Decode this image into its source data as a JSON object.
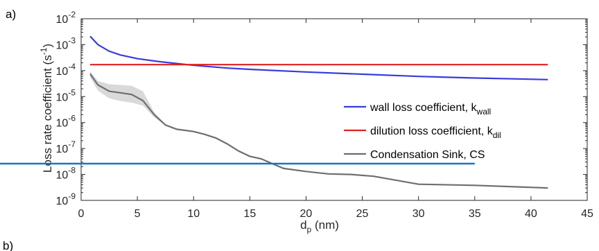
{
  "panel_label": "a)",
  "next_panel_label": "b)",
  "chart_data": {
    "type": "line",
    "title": "",
    "xlabel_main": "d",
    "xlabel_sub": "p",
    "xlabel_unit": " (nm)",
    "ylabel_main": "Loss rate coefficient (s",
    "ylabel_sup": "-1",
    "ylabel_close": ")",
    "xlim": [
      0,
      45
    ],
    "ylim": [
      1e-09,
      0.01
    ],
    "yscale": "log",
    "grid": false,
    "legend_position": "right",
    "x_ticks": [
      "0",
      "5",
      "10",
      "15",
      "20",
      "25",
      "30",
      "35",
      "40",
      "45"
    ],
    "y_ticks": [
      {
        "base": "10",
        "exp": "-9"
      },
      {
        "base": "10",
        "exp": "-8"
      },
      {
        "base": "10",
        "exp": "-7"
      },
      {
        "base": "10",
        "exp": "-6"
      },
      {
        "base": "10",
        "exp": "-5"
      },
      {
        "base": "10",
        "exp": "-4"
      },
      {
        "base": "10",
        "exp": "-3"
      },
      {
        "base": "10",
        "exp": "-2"
      }
    ],
    "series": [
      {
        "name_main": "wall loss coefficient, k",
        "name_sub": "wall",
        "color": "#3a3adb",
        "x": [
          0.8,
          1.5,
          2.5,
          3.5,
          5,
          7,
          10,
          13,
          15,
          20,
          25,
          30,
          35,
          41.5
        ],
        "y": [
          0.0021,
          0.001,
          0.00056,
          0.0004,
          0.00029,
          0.00022,
          0.00016,
          0.000125,
          0.000112,
          8.9e-05,
          7.3e-05,
          6e-05,
          5.2e-05,
          4.5e-05
        ]
      },
      {
        "name_main": "dilution loss coefficient, k",
        "name_sub": "dil",
        "color": "#e02020",
        "x": [
          0.8,
          41.5
        ],
        "y": [
          0.00017,
          0.00017
        ]
      },
      {
        "name_main": "Condensation Sink, CS",
        "name_sub": "",
        "color": "#6e6e6e",
        "band_color": "#d9d9d9",
        "x": [
          0.8,
          1.5,
          2.5,
          3.5,
          4.5,
          5.5,
          6.5,
          7.5,
          8.5,
          10,
          11,
          12,
          13,
          14,
          15,
          16,
          17,
          18,
          20,
          22,
          24,
          26,
          28,
          30,
          35,
          41.5
        ],
        "y": [
          7.5e-05,
          2.8e-05,
          1.6e-05,
          1.4e-05,
          1.2e-05,
          7e-06,
          2e-06,
          8e-07,
          5.5e-07,
          4.5e-07,
          3.5e-07,
          2.5e-07,
          1.5e-07,
          8e-08,
          5e-08,
          4e-08,
          2.6e-08,
          1.7e-08,
          1.3e-08,
          1.05e-08,
          1e-08,
          8.5e-09,
          6e-09,
          4.2e-09,
          3.8e-09,
          3e-09
        ],
        "band_upper": [
          9.5e-05,
          4e-05,
          3e-05,
          2.8e-05,
          2.6e-05,
          1.6e-05,
          2.5e-06,
          8.5e-07,
          5.8e-07,
          4.7e-07,
          3.6e-07,
          2.6e-07,
          1.55e-07,
          8.3e-08,
          5.2e-08,
          4.1e-08,
          2.7e-08,
          1.75e-08,
          1.35e-08,
          1.08e-08,
          1.03e-08,
          8.8e-09,
          6.2e-09,
          4.3e-09,
          3.9e-09,
          3.1e-09
        ],
        "band_lower": [
          5.5e-05,
          1.7e-05,
          8.5e-06,
          6.8e-06,
          5.8e-06,
          4.5e-06,
          1.6e-06,
          7.5e-07,
          5.2e-07,
          4.3e-07,
          3.4e-07,
          2.4e-07,
          1.45e-07,
          7.7e-08,
          4.8e-08,
          3.9e-08,
          2.5e-08,
          1.65e-08,
          1.25e-08,
          1.02e-08,
          9.7e-09,
          8.2e-09,
          5.8e-09,
          4.1e-09,
          3.7e-09,
          2.9e-09
        ]
      }
    ]
  },
  "overlay_line": {
    "color": "#1a73c6",
    "y_value": 2.6e-08,
    "x_end": 35
  }
}
